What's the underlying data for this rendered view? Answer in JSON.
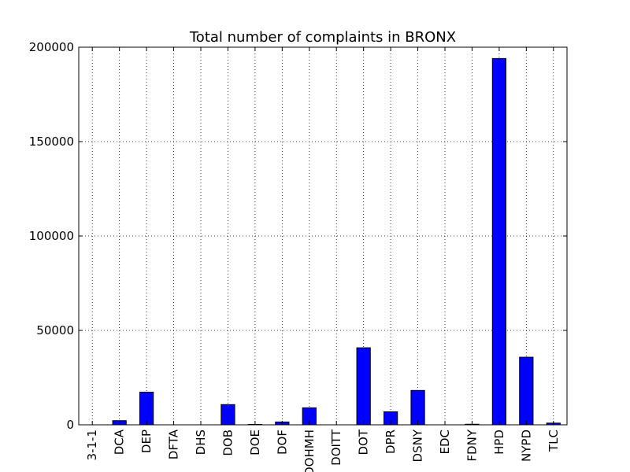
{
  "chart_data": {
    "type": "bar",
    "title": "Total number of complaints in BRONX",
    "xlabel": "",
    "ylabel": "",
    "categories": [
      "3-1-1",
      "DCA",
      "DEP",
      "DFTA",
      "DHS",
      "DOB",
      "DOE",
      "DOF",
      "DOHMH",
      "DOITT",
      "DOT",
      "DPR",
      "DSNY",
      "EDC",
      "FDNY",
      "HPD",
      "NYPD",
      "TLC"
    ],
    "values": [
      0,
      2200,
      17300,
      0,
      0,
      10700,
      200,
      1500,
      9000,
      0,
      40800,
      6900,
      18200,
      0,
      300,
      194000,
      35800,
      900
    ],
    "ylim": [
      0,
      200000
    ],
    "yticks": [
      0,
      50000,
      100000,
      150000,
      200000
    ],
    "grid": true,
    "bar_color": "#0000ff",
    "edge_color": "#000000"
  }
}
